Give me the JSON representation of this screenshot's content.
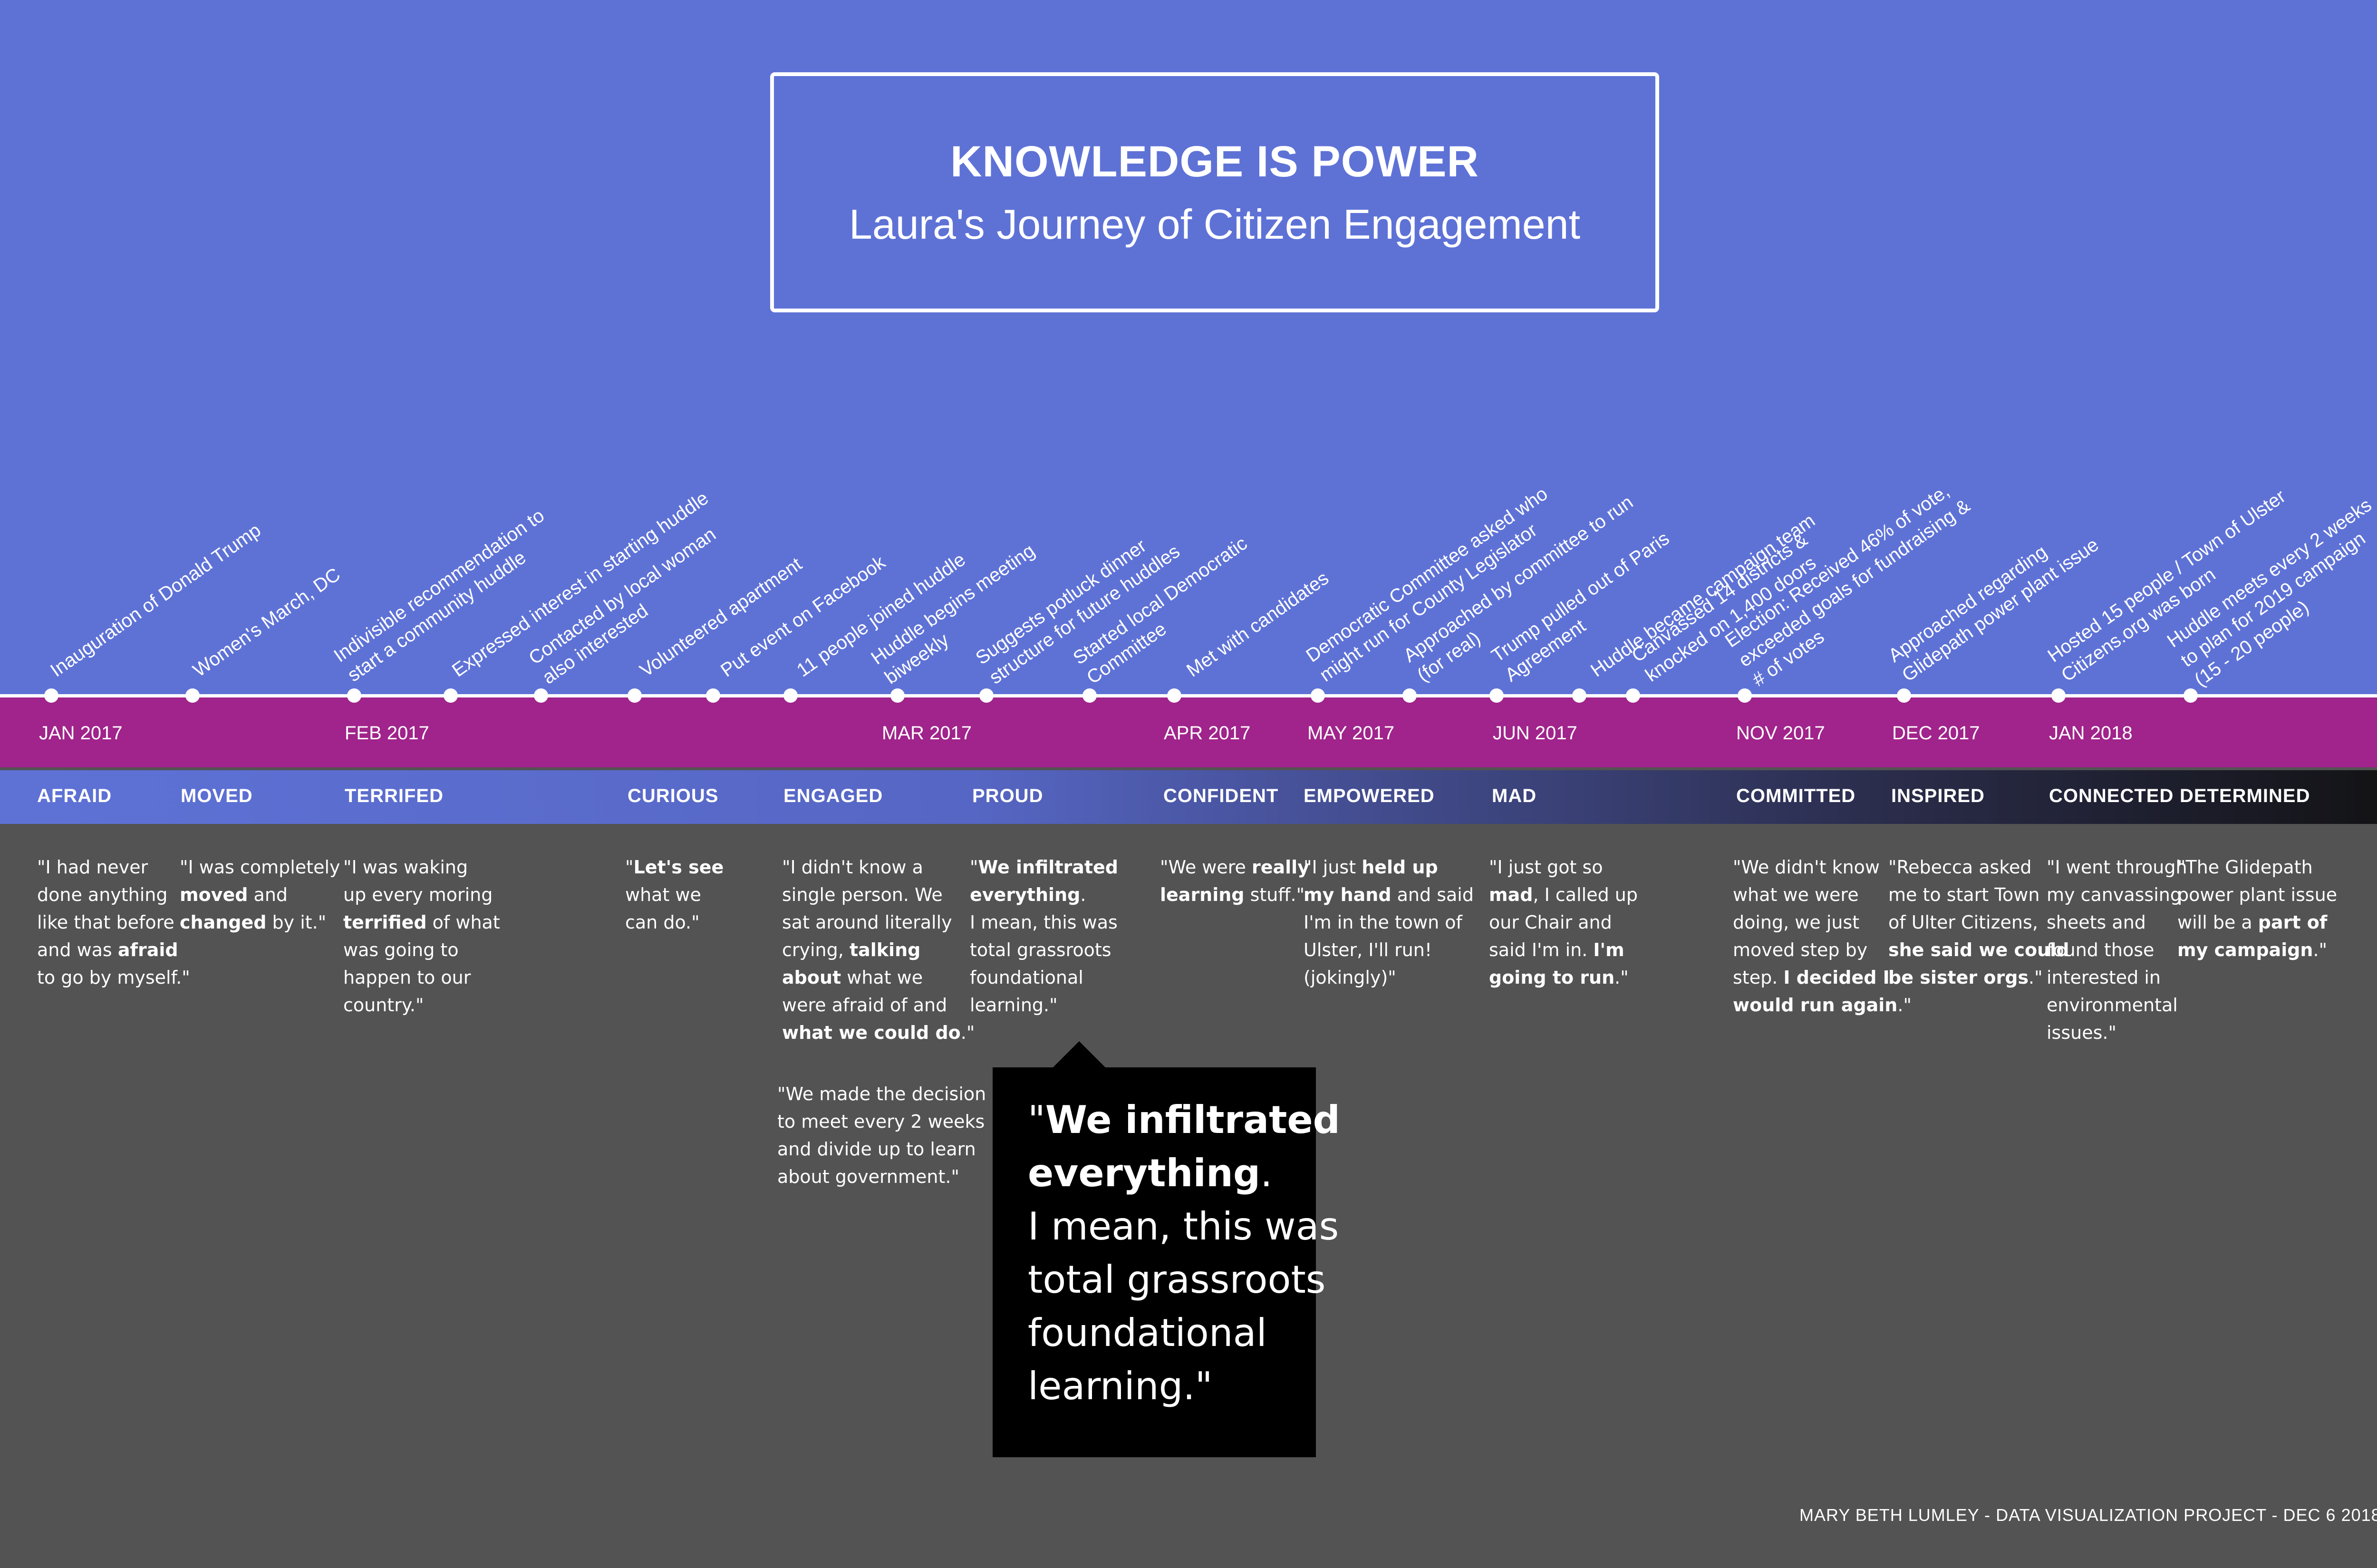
{
  "header": {
    "title": "KNOWLEDGE IS POWER",
    "subtitle": "Laura's Journey of Citizen Engagement"
  },
  "events": [
    {
      "label": "Inauguration of Donald Trump"
    },
    {
      "label": "Women's March, DC"
    },
    {
      "label": "Indivisible recommendation to\nstart a community huddle"
    },
    {
      "label": "Expressed interest in starting huddle"
    },
    {
      "label": "Contacted by local woman\nalso interested"
    },
    {
      "label": "Volunteered apartment"
    },
    {
      "label": "Put event on Facebook"
    },
    {
      "label": "11 people joined huddle"
    },
    {
      "label": "Huddle begins meeting\nbiweekly"
    },
    {
      "label": "Suggests potluck dinner\nstructure for future huddles"
    },
    {
      "label": "Started local Democratic\nCommittee"
    },
    {
      "label": "Met with candidates"
    },
    {
      "label": "Democratic Committee asked who\nmight run for County Legislator"
    },
    {
      "label": "Approached by committee to run\n(for real)"
    },
    {
      "label": "Trump pulled out of Paris\nAgreement"
    },
    {
      "label": "Huddle became campaign team"
    },
    {
      "label": "Canvassed 14 districts &\nknocked on 1,400 doors"
    },
    {
      "label": "Election: Received 46% of vote,\nexceeded goals for fundraising &\n# of votes"
    },
    {
      "label": "Approached regarding\nGlidepath power plant issue"
    },
    {
      "label": "Hosted 15 people / Town of Ulster\nCitizens.org was born"
    },
    {
      "label": "Huddle meets every 2 weeks\nto plan for 2019 campaign\n(15 - 20 people)"
    }
  ],
  "months": [
    {
      "label": "JAN 2017"
    },
    {
      "label": "FEB 2017"
    },
    {
      "label": "MAR 2017"
    },
    {
      "label": "APR 2017"
    },
    {
      "label": "MAY 2017"
    },
    {
      "label": "JUN 2017"
    },
    {
      "label": "NOV 2017"
    },
    {
      "label": "DEC 2017"
    },
    {
      "label": "JAN 2018"
    }
  ],
  "emotions": [
    {
      "label": "AFRAID"
    },
    {
      "label": "MOVED"
    },
    {
      "label": "TERRIFED"
    },
    {
      "label": "CURIOUS"
    },
    {
      "label": "ENGAGED"
    },
    {
      "label": "PROUD"
    },
    {
      "label": "CONFIDENT"
    },
    {
      "label": "EMPOWERED"
    },
    {
      "label": "MAD"
    },
    {
      "label": "COMMITTED"
    },
    {
      "label": "INSPIRED"
    },
    {
      "label": "CONNECTED"
    },
    {
      "label": "DETERMINED"
    }
  ],
  "quotes": [
    {
      "segments": [
        {
          "t": "\"I had never\ndone anything\nlike that before\nand was "
        },
        {
          "t": "afraid",
          "b": true
        },
        {
          "t": "\nto go by myself.\""
        }
      ]
    },
    {
      "segments": [
        {
          "t": "\"I was completely\n"
        },
        {
          "t": "moved",
          "b": true
        },
        {
          "t": " and\n"
        },
        {
          "t": "changed",
          "b": true
        },
        {
          "t": " by it.\""
        }
      ]
    },
    {
      "segments": [
        {
          "t": "\"I was waking\nup every moring\n"
        },
        {
          "t": "terrified",
          "b": true
        },
        {
          "t": " of what\nwas going to\nhappen to our\ncountry.\""
        }
      ]
    },
    {
      "segments": [
        {
          "t": "\""
        },
        {
          "t": "Let's see",
          "b": true
        },
        {
          "t": "\nwhat we\ncan do.\""
        }
      ]
    },
    {
      "segments": [
        {
          "t": "\"I didn't know a\nsingle person. We\nsat around literally\ncrying, "
        },
        {
          "t": "talking\nabout",
          "b": true
        },
        {
          "t": " what we\nwere afraid of and\n"
        },
        {
          "t": "what we could do",
          "b": true
        },
        {
          "t": ".\""
        }
      ]
    },
    {
      "segments": [
        {
          "t": "\"We made the decision\nto meet every 2 weeks\nand divide up to learn\nabout government.\""
        }
      ]
    },
    {
      "segments": [
        {
          "t": "\""
        },
        {
          "t": "We infiltrated\neverything",
          "b": true
        },
        {
          "t": ".\nI mean, this was\ntotal grassroots\nfoundational\nlearning.\""
        }
      ]
    },
    {
      "segments": [
        {
          "t": "\"We were "
        },
        {
          "t": "really\nlearning",
          "b": true
        },
        {
          "t": " stuff.\""
        }
      ]
    },
    {
      "segments": [
        {
          "t": "\"I just "
        },
        {
          "t": "held up\nmy hand",
          "b": true
        },
        {
          "t": " and said\nI'm in the town of\nUlster, I'll run!\n(jokingly)\""
        }
      ]
    },
    {
      "segments": [
        {
          "t": "\"I just got so\n"
        },
        {
          "t": "mad",
          "b": true
        },
        {
          "t": ", I called up\nour Chair and\nsaid I'm in. "
        },
        {
          "t": "I'm\ngoing to run",
          "b": true
        },
        {
          "t": ".\""
        }
      ]
    },
    {
      "segments": [
        {
          "t": "\"We didn't know\nwhat we were\ndoing, we just\nmoved step by\nstep. "
        },
        {
          "t": "I decided I\nwould run again",
          "b": true
        },
        {
          "t": ".\""
        }
      ]
    },
    {
      "segments": [
        {
          "t": "\"Rebecca asked\nme to start Town\nof Ulter Citizens,\n"
        },
        {
          "t": "she said we could\nbe sister orgs",
          "b": true
        },
        {
          "t": ".\""
        }
      ]
    },
    {
      "segments": [
        {
          "t": "\"I went through\nmy canvassing\nsheets and\nfound those\ninterested in\nenvironmental\nissues.\""
        }
      ]
    },
    {
      "segments": [
        {
          "t": "\"The Glidepath\npower plant issue\nwill be a "
        },
        {
          "t": "part of\nmy campaign",
          "b": true
        },
        {
          "t": ".\""
        }
      ]
    }
  ],
  "callout": {
    "segments": [
      {
        "t": "\""
      },
      {
        "t": "We infiltrated\neverything",
        "b": true
      },
      {
        "t": ".\nI mean, this was\ntotal grassroots\nfoundational\nlearning.\""
      }
    ]
  },
  "footer": {
    "credit": "MARY BETH LUMLEY  -  DATA VISUALIZATION PROJECT -  DEC 6 2018"
  }
}
